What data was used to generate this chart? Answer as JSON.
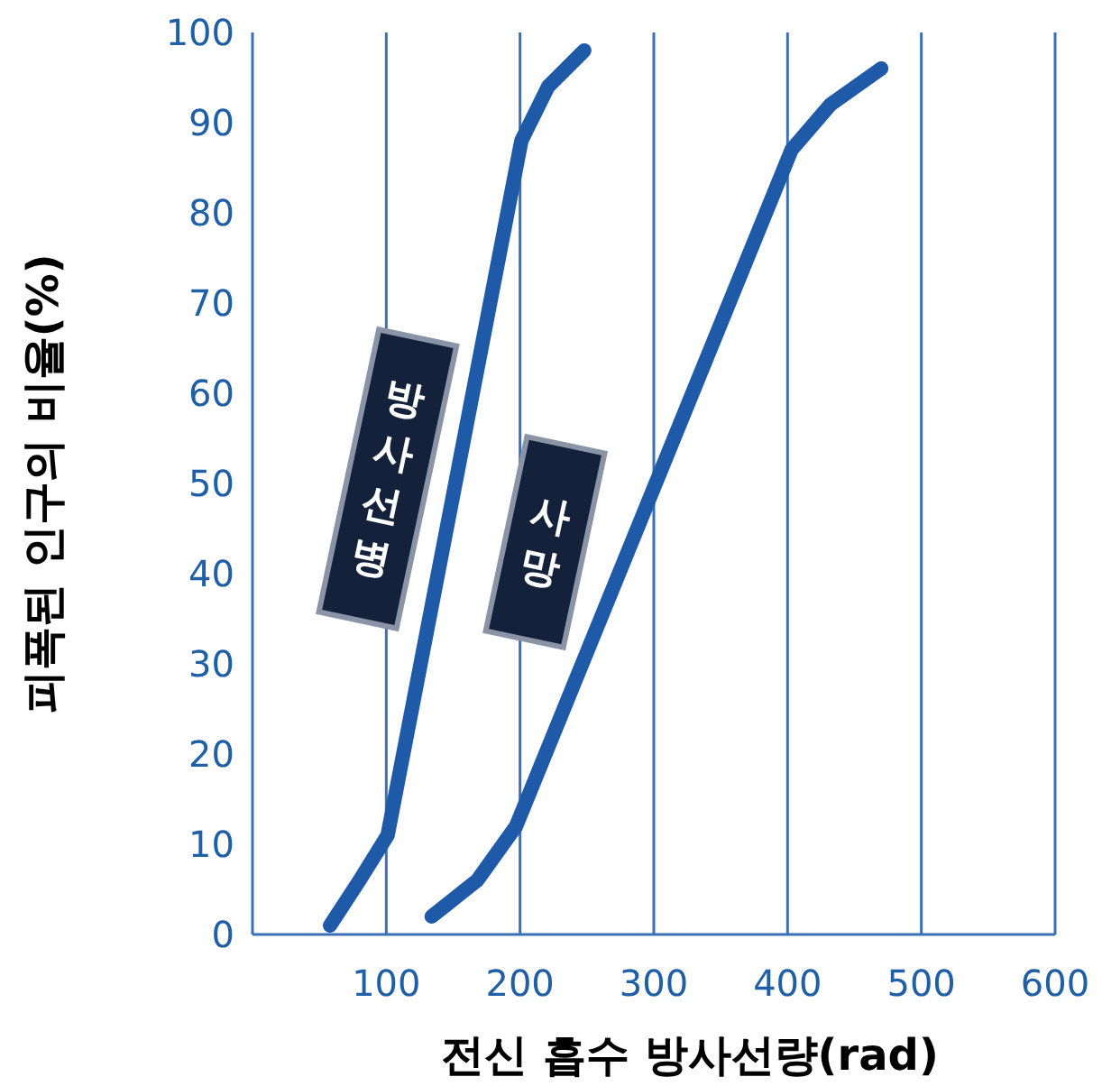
{
  "chart_data": {
    "type": "line",
    "xlabel": "전신 흡수 방사선량(rad)",
    "ylabel": "피폭된 인구의 비율(%)",
    "xlim": [
      0,
      600
    ],
    "xticks": [
      100,
      200,
      300,
      400,
      500,
      600
    ],
    "ylim": [
      0,
      100
    ],
    "yticks": [
      0,
      10,
      20,
      30,
      40,
      50,
      60,
      70,
      80,
      90,
      100
    ],
    "grid": "x",
    "marker": "none",
    "line_style": "solid",
    "series": [
      {
        "name": "방사선병",
        "color": "#1f5aa8",
        "x": [
          58,
          80,
          101,
          201,
          221,
          248
        ],
        "values": [
          1,
          6,
          11,
          88,
          94,
          98
        ]
      },
      {
        "name": "사망",
        "color": "#1f5aa8",
        "x": [
          134,
          168,
          197,
          403,
          432,
          470
        ],
        "values": [
          2,
          6,
          12,
          87,
          92,
          96
        ]
      }
    ]
  }
}
